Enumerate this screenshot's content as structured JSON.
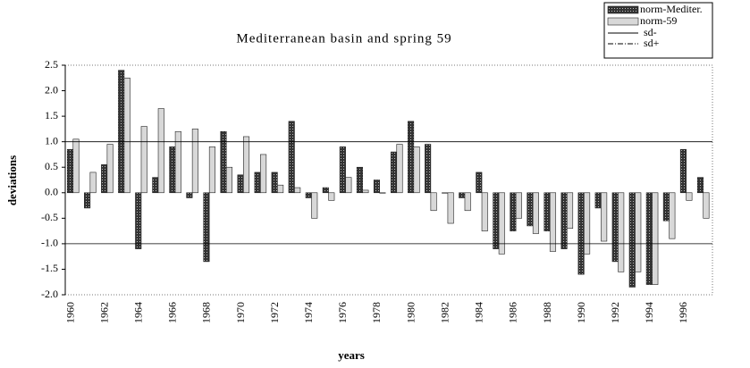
{
  "chart_data": {
    "type": "bar",
    "title": "Mediterranean basin and spring 59",
    "x_label": "years",
    "y_label": "deviations",
    "categories": [
      "1960",
      null,
      "1962",
      null,
      "1964",
      null,
      "1966",
      null,
      "1968",
      null,
      "1970",
      null,
      "1972",
      null,
      "1974",
      null,
      "1976",
      null,
      "1978",
      null,
      "1980",
      null,
      "1982",
      null,
      "1984",
      null,
      "1986",
      null,
      "1988",
      null,
      "1990",
      null,
      "1992",
      null,
      "1994",
      null,
      "1996",
      null
    ],
    "series": [
      {
        "name": "norm-Mediter.",
        "color": "#555555",
        "values": [
          0.85,
          -0.3,
          0.55,
          2.4,
          -1.1,
          0.3,
          0.9,
          -0.1,
          -1.35,
          1.2,
          0.35,
          0.4,
          0.4,
          1.4,
          -0.1,
          0.1,
          0.9,
          0.5,
          0.25,
          0.8,
          1.4,
          0.95,
          0.0,
          -0.1,
          0.4,
          -1.1,
          -0.75,
          -0.65,
          -0.75,
          -1.1,
          -1.6,
          -0.3,
          -1.35,
          -1.85,
          -1.8,
          -0.55,
          0.85,
          0.3
        ]
      },
      {
        "name": "norm-59",
        "color": "#d8d8d8",
        "values": [
          1.05,
          0.4,
          0.95,
          2.25,
          1.3,
          1.65,
          1.2,
          1.25,
          0.9,
          0.5,
          1.1,
          0.75,
          0.15,
          0.1,
          -0.5,
          -0.15,
          0.3,
          0.05,
          0.0,
          0.95,
          0.9,
          -0.35,
          -0.6,
          -0.35,
          -0.75,
          -1.2,
          -0.5,
          -0.8,
          -1.15,
          -0.7,
          -1.2,
          -0.95,
          -1.55,
          -1.55,
          -1.8,
          -0.9,
          -0.15,
          -0.5
        ]
      }
    ],
    "reference_lines": [
      {
        "name": "sd-",
        "value": -1,
        "color": "#000000"
      },
      {
        "name": "sd+",
        "value": 1,
        "color": "#000000"
      }
    ],
    "ylim": [
      -2,
      2.5
    ],
    "yticks": [
      2.5,
      {
        "value": 2,
        "label": "2.0"
      },
      1.5,
      {
        "value": 1,
        "label": "1.0"
      },
      0.5,
      {
        "value": 0,
        "label": "0.0"
      },
      -0.5,
      {
        "value": -1,
        "label": "-1.0"
      },
      -1.5,
      {
        "value": -2,
        "label": "-2.0"
      }
    ],
    "legend": "top-right"
  }
}
